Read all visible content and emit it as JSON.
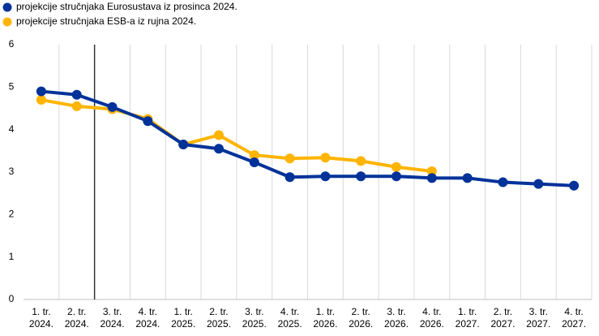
{
  "chart_data": {
    "type": "line",
    "categories": [
      [
        "1. tr.",
        "2024."
      ],
      [
        "2. tr.",
        "2024."
      ],
      [
        "3. tr.",
        "2024."
      ],
      [
        "4. tr.",
        "2024."
      ],
      [
        "1. tr.",
        "2025."
      ],
      [
        "2. tr.",
        "2025."
      ],
      [
        "3. tr.",
        "2025."
      ],
      [
        "4. tr.",
        "2025."
      ],
      [
        "1. tr.",
        "2026."
      ],
      [
        "2. tr.",
        "2026."
      ],
      [
        "3. tr.",
        "2026."
      ],
      [
        "4. tr.",
        "2026."
      ],
      [
        "1. tr.",
        "2027."
      ],
      [
        "2. tr.",
        "2027."
      ],
      [
        "3. tr.",
        "2027."
      ],
      [
        "4. tr.",
        "2027."
      ]
    ],
    "series": [
      {
        "name": "projekcije stručnjaka Eurosustava iz prosinca 2024.",
        "color": "#003299",
        "values": [
          4.9,
          4.82,
          4.53,
          4.2,
          3.65,
          3.55,
          3.23,
          2.88,
          2.9,
          2.9,
          2.9,
          2.86,
          2.86,
          2.76,
          2.72,
          2.68
        ]
      },
      {
        "name": "projekcije stručnjaka ESB-a iz rujna 2024.",
        "color": "#FFB400",
        "values": [
          4.7,
          4.55,
          4.48,
          4.25,
          3.65,
          3.87,
          3.4,
          3.32,
          3.34,
          3.26,
          3.12,
          3.02,
          null,
          null,
          null,
          null
        ]
      }
    ],
    "ylim": [
      0,
      6
    ],
    "yticks": [
      0,
      1,
      2,
      3,
      4,
      5,
      6
    ],
    "grid": true,
    "legend": "top-left"
  }
}
